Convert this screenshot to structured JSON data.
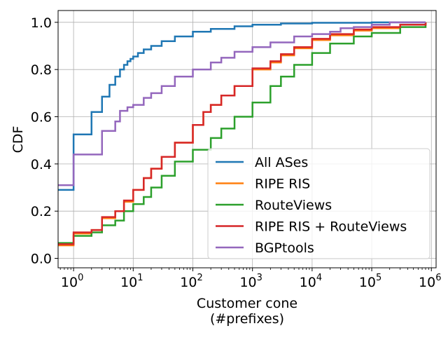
{
  "chart_data": {
    "type": "line",
    "title": "",
    "xlabel": "Customer cone",
    "xlabel_line2": "(#prefixes)",
    "ylabel": "CDF",
    "x_scale": "log",
    "xlim": [
      0.55,
      1200000
    ],
    "ylim": [
      -0.04,
      1.05
    ],
    "grid": true,
    "legend_position": "lower right",
    "x_ticks": [
      {
        "value": 1,
        "base": "10",
        "exp": "0"
      },
      {
        "value": 10,
        "base": "10",
        "exp": "1"
      },
      {
        "value": 100,
        "base": "10",
        "exp": "2"
      },
      {
        "value": 1000,
        "base": "10",
        "exp": "3"
      },
      {
        "value": 10000,
        "base": "10",
        "exp": "4"
      },
      {
        "value": 100000,
        "base": "10",
        "exp": "5"
      },
      {
        "value": 1000000,
        "base": "10",
        "exp": "6"
      }
    ],
    "y_ticks": [
      {
        "value": 0.0,
        "label": "0.0"
      },
      {
        "value": 0.2,
        "label": "0.2"
      },
      {
        "value": 0.4,
        "label": "0.4"
      },
      {
        "value": 0.6,
        "label": "0.6"
      },
      {
        "value": 0.8,
        "label": "0.8"
      },
      {
        "value": 1.0,
        "label": "1.0"
      }
    ],
    "series": [
      {
        "name": "All ASes",
        "color": "#1f77b4",
        "step": true,
        "points": [
          [
            0.55,
            0.29
          ],
          [
            1,
            0.525
          ],
          [
            2,
            0.62
          ],
          [
            3,
            0.685
          ],
          [
            4,
            0.735
          ],
          [
            5,
            0.77
          ],
          [
            6,
            0.8
          ],
          [
            7,
            0.82
          ],
          [
            8,
            0.835
          ],
          [
            9,
            0.845
          ],
          [
            10,
            0.855
          ],
          [
            12,
            0.87
          ],
          [
            15,
            0.885
          ],
          [
            20,
            0.9
          ],
          [
            30,
            0.92
          ],
          [
            50,
            0.94
          ],
          [
            100,
            0.96
          ],
          [
            200,
            0.972
          ],
          [
            500,
            0.983
          ],
          [
            1000,
            0.99
          ],
          [
            3000,
            0.995
          ],
          [
            10000,
            0.998
          ],
          [
            100000,
            1.0
          ],
          [
            800000,
            1.0
          ]
        ]
      },
      {
        "name": "RIPE RIS",
        "color": "#ff7f0e",
        "step": true,
        "points": [
          [
            0.55,
            0.055
          ],
          [
            1,
            0.105
          ],
          [
            2,
            0.12
          ],
          [
            3,
            0.17
          ],
          [
            5,
            0.2
          ],
          [
            7,
            0.24
          ],
          [
            10,
            0.29
          ],
          [
            15,
            0.34
          ],
          [
            20,
            0.38
          ],
          [
            30,
            0.43
          ],
          [
            50,
            0.49
          ],
          [
            100,
            0.565
          ],
          [
            150,
            0.62
          ],
          [
            200,
            0.65
          ],
          [
            300,
            0.69
          ],
          [
            500,
            0.73
          ],
          [
            1000,
            0.8
          ],
          [
            2000,
            0.83
          ],
          [
            3000,
            0.86
          ],
          [
            5000,
            0.89
          ],
          [
            10000,
            0.925
          ],
          [
            20000,
            0.945
          ],
          [
            50000,
            0.965
          ],
          [
            100000,
            0.975
          ],
          [
            300000,
            0.99
          ],
          [
            800000,
            1.0
          ]
        ]
      },
      {
        "name": "RouteViews",
        "color": "#2ca02c",
        "step": true,
        "points": [
          [
            0.55,
            0.065
          ],
          [
            1,
            0.095
          ],
          [
            2,
            0.11
          ],
          [
            3,
            0.14
          ],
          [
            5,
            0.16
          ],
          [
            7,
            0.2
          ],
          [
            10,
            0.23
          ],
          [
            15,
            0.26
          ],
          [
            20,
            0.3
          ],
          [
            30,
            0.35
          ],
          [
            50,
            0.41
          ],
          [
            100,
            0.46
          ],
          [
            200,
            0.51
          ],
          [
            300,
            0.55
          ],
          [
            500,
            0.6
          ],
          [
            1000,
            0.66
          ],
          [
            2000,
            0.73
          ],
          [
            3000,
            0.77
          ],
          [
            5000,
            0.82
          ],
          [
            10000,
            0.87
          ],
          [
            20000,
            0.91
          ],
          [
            50000,
            0.94
          ],
          [
            100000,
            0.955
          ],
          [
            300000,
            0.98
          ],
          [
            800000,
            1.0
          ]
        ]
      },
      {
        "name": "RIPE RIS + RouteViews",
        "color": "#d62728",
        "step": true,
        "points": [
          [
            0.55,
            0.06
          ],
          [
            1,
            0.11
          ],
          [
            2,
            0.12
          ],
          [
            3,
            0.175
          ],
          [
            5,
            0.2
          ],
          [
            7,
            0.245
          ],
          [
            10,
            0.29
          ],
          [
            15,
            0.34
          ],
          [
            20,
            0.38
          ],
          [
            30,
            0.43
          ],
          [
            50,
            0.49
          ],
          [
            100,
            0.565
          ],
          [
            150,
            0.62
          ],
          [
            200,
            0.65
          ],
          [
            300,
            0.69
          ],
          [
            500,
            0.73
          ],
          [
            1000,
            0.805
          ],
          [
            2000,
            0.835
          ],
          [
            3000,
            0.865
          ],
          [
            5000,
            0.895
          ],
          [
            10000,
            0.93
          ],
          [
            20000,
            0.95
          ],
          [
            50000,
            0.97
          ],
          [
            100000,
            0.98
          ],
          [
            300000,
            0.99
          ],
          [
            800000,
            1.0
          ]
        ]
      },
      {
        "name": "BGPtools",
        "color": "#9467bd",
        "step": true,
        "points": [
          [
            0.55,
            0.31
          ],
          [
            1,
            0.44
          ],
          [
            3,
            0.54
          ],
          [
            5,
            0.58
          ],
          [
            6,
            0.625
          ],
          [
            8,
            0.64
          ],
          [
            10,
            0.65
          ],
          [
            15,
            0.68
          ],
          [
            20,
            0.7
          ],
          [
            30,
            0.73
          ],
          [
            50,
            0.77
          ],
          [
            100,
            0.8
          ],
          [
            200,
            0.83
          ],
          [
            300,
            0.85
          ],
          [
            500,
            0.875
          ],
          [
            1000,
            0.895
          ],
          [
            2000,
            0.915
          ],
          [
            5000,
            0.94
          ],
          [
            10000,
            0.95
          ],
          [
            20000,
            0.96
          ],
          [
            30000,
            0.975
          ],
          [
            50000,
            0.98
          ],
          [
            100000,
            0.99
          ],
          [
            200000,
            1.0
          ],
          [
            800000,
            1.0
          ]
        ]
      }
    ]
  }
}
